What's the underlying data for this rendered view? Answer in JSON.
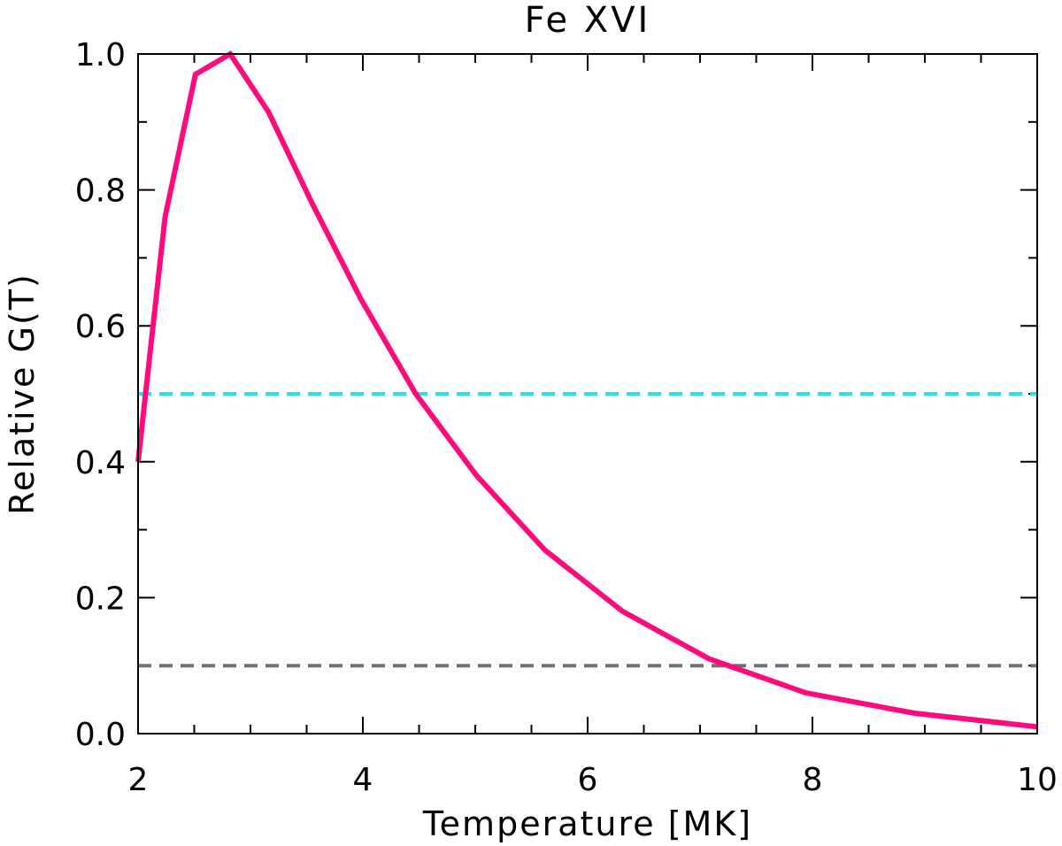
{
  "chart_data": {
    "type": "line",
    "title": "Fe  XVI",
    "xlabel": "Temperature [MK]",
    "ylabel": "Relative G(T)",
    "xlim": [
      2,
      10
    ],
    "ylim": [
      0,
      1.0
    ],
    "x_ticks": [
      {
        "value": 2,
        "label": "2"
      },
      {
        "value": 4,
        "label": "4"
      },
      {
        "value": 6,
        "label": "6"
      },
      {
        "value": 8,
        "label": "8"
      },
      {
        "value": 10,
        "label": "10"
      }
    ],
    "y_ticks": [
      {
        "value": 0.0,
        "label": "0.0"
      },
      {
        "value": 0.2,
        "label": "0.2"
      },
      {
        "value": 0.4,
        "label": "0.4"
      },
      {
        "value": 0.6,
        "label": "0.6"
      },
      {
        "value": 0.8,
        "label": "0.8"
      },
      {
        "value": 1.0,
        "label": "1.0"
      }
    ],
    "x_minor_step": 0.5,
    "y_minor_step": 0.1,
    "grid": false,
    "series": [
      {
        "color": "#ff0a7e",
        "style": "solid",
        "x": [
          2.0,
          2.24,
          2.51,
          2.82,
          3.16,
          3.55,
          3.98,
          4.47,
          5.01,
          5.62,
          6.31,
          7.08,
          7.94,
          8.91,
          10.0
        ],
        "y": [
          0.4,
          0.76,
          0.97,
          1.0,
          0.915,
          0.78,
          0.64,
          0.5,
          0.38,
          0.27,
          0.18,
          0.11,
          0.06,
          0.03,
          0.01
        ]
      }
    ],
    "reference_lines": [
      {
        "y": 0.5,
        "color": "#22e6e6",
        "style": "dashed"
      },
      {
        "y": 0.1,
        "color": "#707070",
        "style": "dashed"
      }
    ]
  }
}
